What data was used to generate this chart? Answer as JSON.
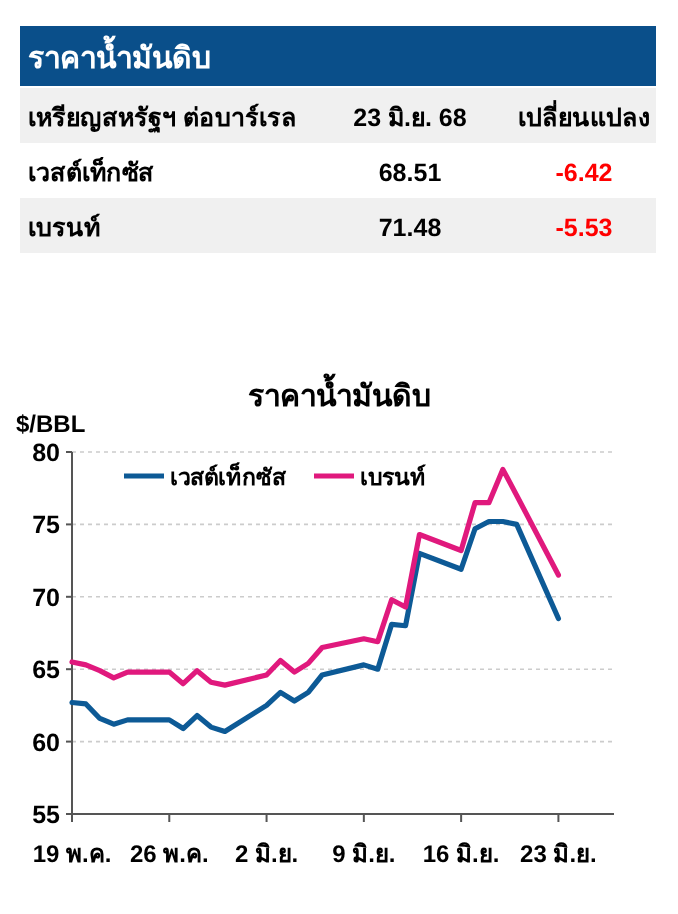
{
  "chart_data": [
    {
      "type": "other",
      "title": "ราคาน้ำมันดิบ",
      "annotations": [
        "เหรียญสหรัฐฯ ต่อบาร์เรล",
        "23 มิ.ย. 68",
        "เปลี่ยนแปลง",
        "เวสต์เท็กซัส",
        "68.51",
        "-6.42",
        "เบรนท์",
        "71.48",
        "-5.53"
      ],
      "colors": [
        "#000000",
        "#000000",
        "#000000",
        "#000000",
        "#000000",
        "#ff0000",
        "#000000",
        "#000000",
        "#ff0000"
      ]
    },
    {
      "type": "line",
      "title": "ราคาน้ำมันดิบ",
      "ylabel": "$/BBL",
      "x": [
        "--05-19",
        "--05-20",
        "--05-21",
        "--05-22",
        "--05-23",
        "--05-26",
        "--05-27",
        "--05-28",
        "--05-29",
        "--05-30",
        "--06-02",
        "--06-03",
        "--06-04",
        "--06-05",
        "--06-06",
        "--06-09",
        "--06-10",
        "--06-11",
        "--06-12",
        "--06-13",
        "--06-16",
        "--06-17",
        "--06-18",
        "--06-19",
        "--06-20",
        "--06-23"
      ],
      "series": [
        {
          "name": "เวสต์เท็กซัส",
          "color": "#0d5a96",
          "values": [
            62.7,
            62.6,
            61.6,
            61.2,
            61.5,
            61.5,
            60.9,
            61.8,
            61.0,
            60.7,
            62.5,
            63.4,
            62.8,
            63.4,
            64.6,
            65.3,
            65.0,
            68.1,
            68.0,
            73.0,
            71.9,
            74.7,
            75.2,
            75.2,
            75.0,
            68.5
          ]
        },
        {
          "name": "เบรนท์",
          "color": "#e0197d",
          "values": [
            65.5,
            65.3,
            64.9,
            64.4,
            64.8,
            64.8,
            64.0,
            64.9,
            64.1,
            63.9,
            64.6,
            65.6,
            64.8,
            65.4,
            66.5,
            67.1,
            66.9,
            69.8,
            69.3,
            74.3,
            73.2,
            76.5,
            76.5,
            78.8,
            77.0,
            71.5
          ]
        }
      ],
      "xlim": [
        "--05-19",
        "--06-27"
      ],
      "xticks": [
        {
          "value": "--05-19",
          "label": "19 พ.ค."
        },
        {
          "value": "--05-26",
          "label": "26 พ.ค."
        },
        {
          "value": "--06-02",
          "label": "2 มิ.ย."
        },
        {
          "value": "--06-09",
          "label": "9 มิ.ย."
        },
        {
          "value": "--06-16",
          "label": "16 มิ.ย."
        },
        {
          "value": "--06-23",
          "label": "23 มิ.ย."
        }
      ],
      "ylim": [
        55,
        80
      ],
      "yticks": [
        55,
        60,
        65,
        70,
        75,
        80
      ],
      "grid": "y",
      "legend": "top",
      "marker": "none"
    }
  ]
}
